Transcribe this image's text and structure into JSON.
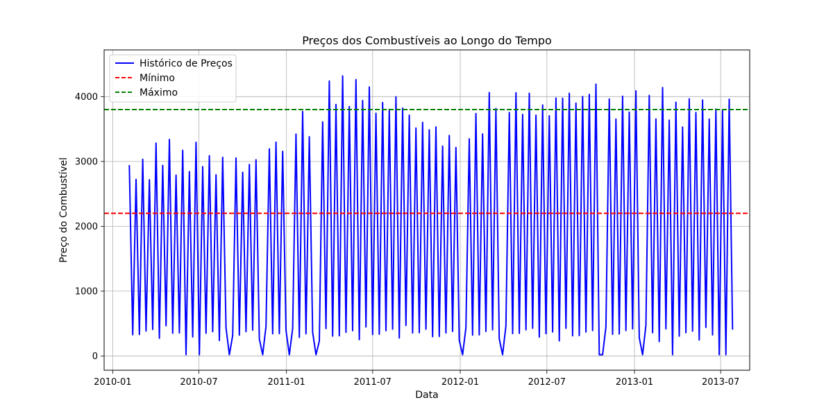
{
  "chart_data": {
    "type": "line",
    "title": "Preços dos Combustíveis ao Longo do Tempo",
    "xlabel": "Data",
    "ylabel": "Preço do Combustível",
    "x_ticks": [
      "2010-01",
      "2010-07",
      "2011-01",
      "2011-07",
      "2012-01",
      "2012-07",
      "2013-01",
      "2013-07"
    ],
    "y_ticks": [
      0,
      1000,
      2000,
      3000,
      4000
    ],
    "xlim": [
      "2009-12-14",
      "2013-08-31"
    ],
    "ylim": [
      -220,
      4720
    ],
    "grid": true,
    "legend_position": "upper left",
    "series": [
      {
        "name": "Histórico de Preços",
        "style": "solid",
        "color": "#0000ff",
        "x_range": [
          "2010-02-05",
          "2013-07-26"
        ],
        "frequency": "weekly",
        "envelope_upper": [
          [
            "2010-02-05",
            2600
          ],
          [
            "2010-04-01",
            2950
          ],
          [
            "2010-07-01",
            2900
          ],
          [
            "2010-10-01",
            2800
          ],
          [
            "2011-01-01",
            3250
          ],
          [
            "2011-03-01",
            3550
          ],
          [
            "2011-05-01",
            4050
          ],
          [
            "2011-07-01",
            3800
          ],
          [
            "2011-09-01",
            3700
          ],
          [
            "2011-11-01",
            3300
          ],
          [
            "2012-01-01",
            3200
          ],
          [
            "2012-04-01",
            3950
          ],
          [
            "2012-06-01",
            3650
          ],
          [
            "2012-08-01",
            3800
          ],
          [
            "2012-10-01",
            3950
          ],
          [
            "2012-12-01",
            3700
          ],
          [
            "2013-02-01",
            3750
          ],
          [
            "2013-04-01",
            3650
          ],
          [
            "2013-07-26",
            3700
          ]
        ],
        "drop_lows": [
          280,
          350,
          400
        ],
        "drop_near_zero_dates": [
          "2010-06-04",
          "2010-07-02",
          "2010-09-03",
          "2010-11-12",
          "2011-01-07",
          "2011-03-04",
          "2012-01-06",
          "2012-03-30",
          "2012-10-19",
          "2012-10-26",
          "2013-01-18",
          "2013-03-22",
          "2013-06-28",
          "2013-07-12"
        ]
      },
      {
        "name": "Mínimo",
        "style": "dashed",
        "color": "#ff0000",
        "value": 2200
      },
      {
        "name": "Máximo",
        "style": "dashed",
        "color": "#008000",
        "value": 3800
      }
    ]
  }
}
